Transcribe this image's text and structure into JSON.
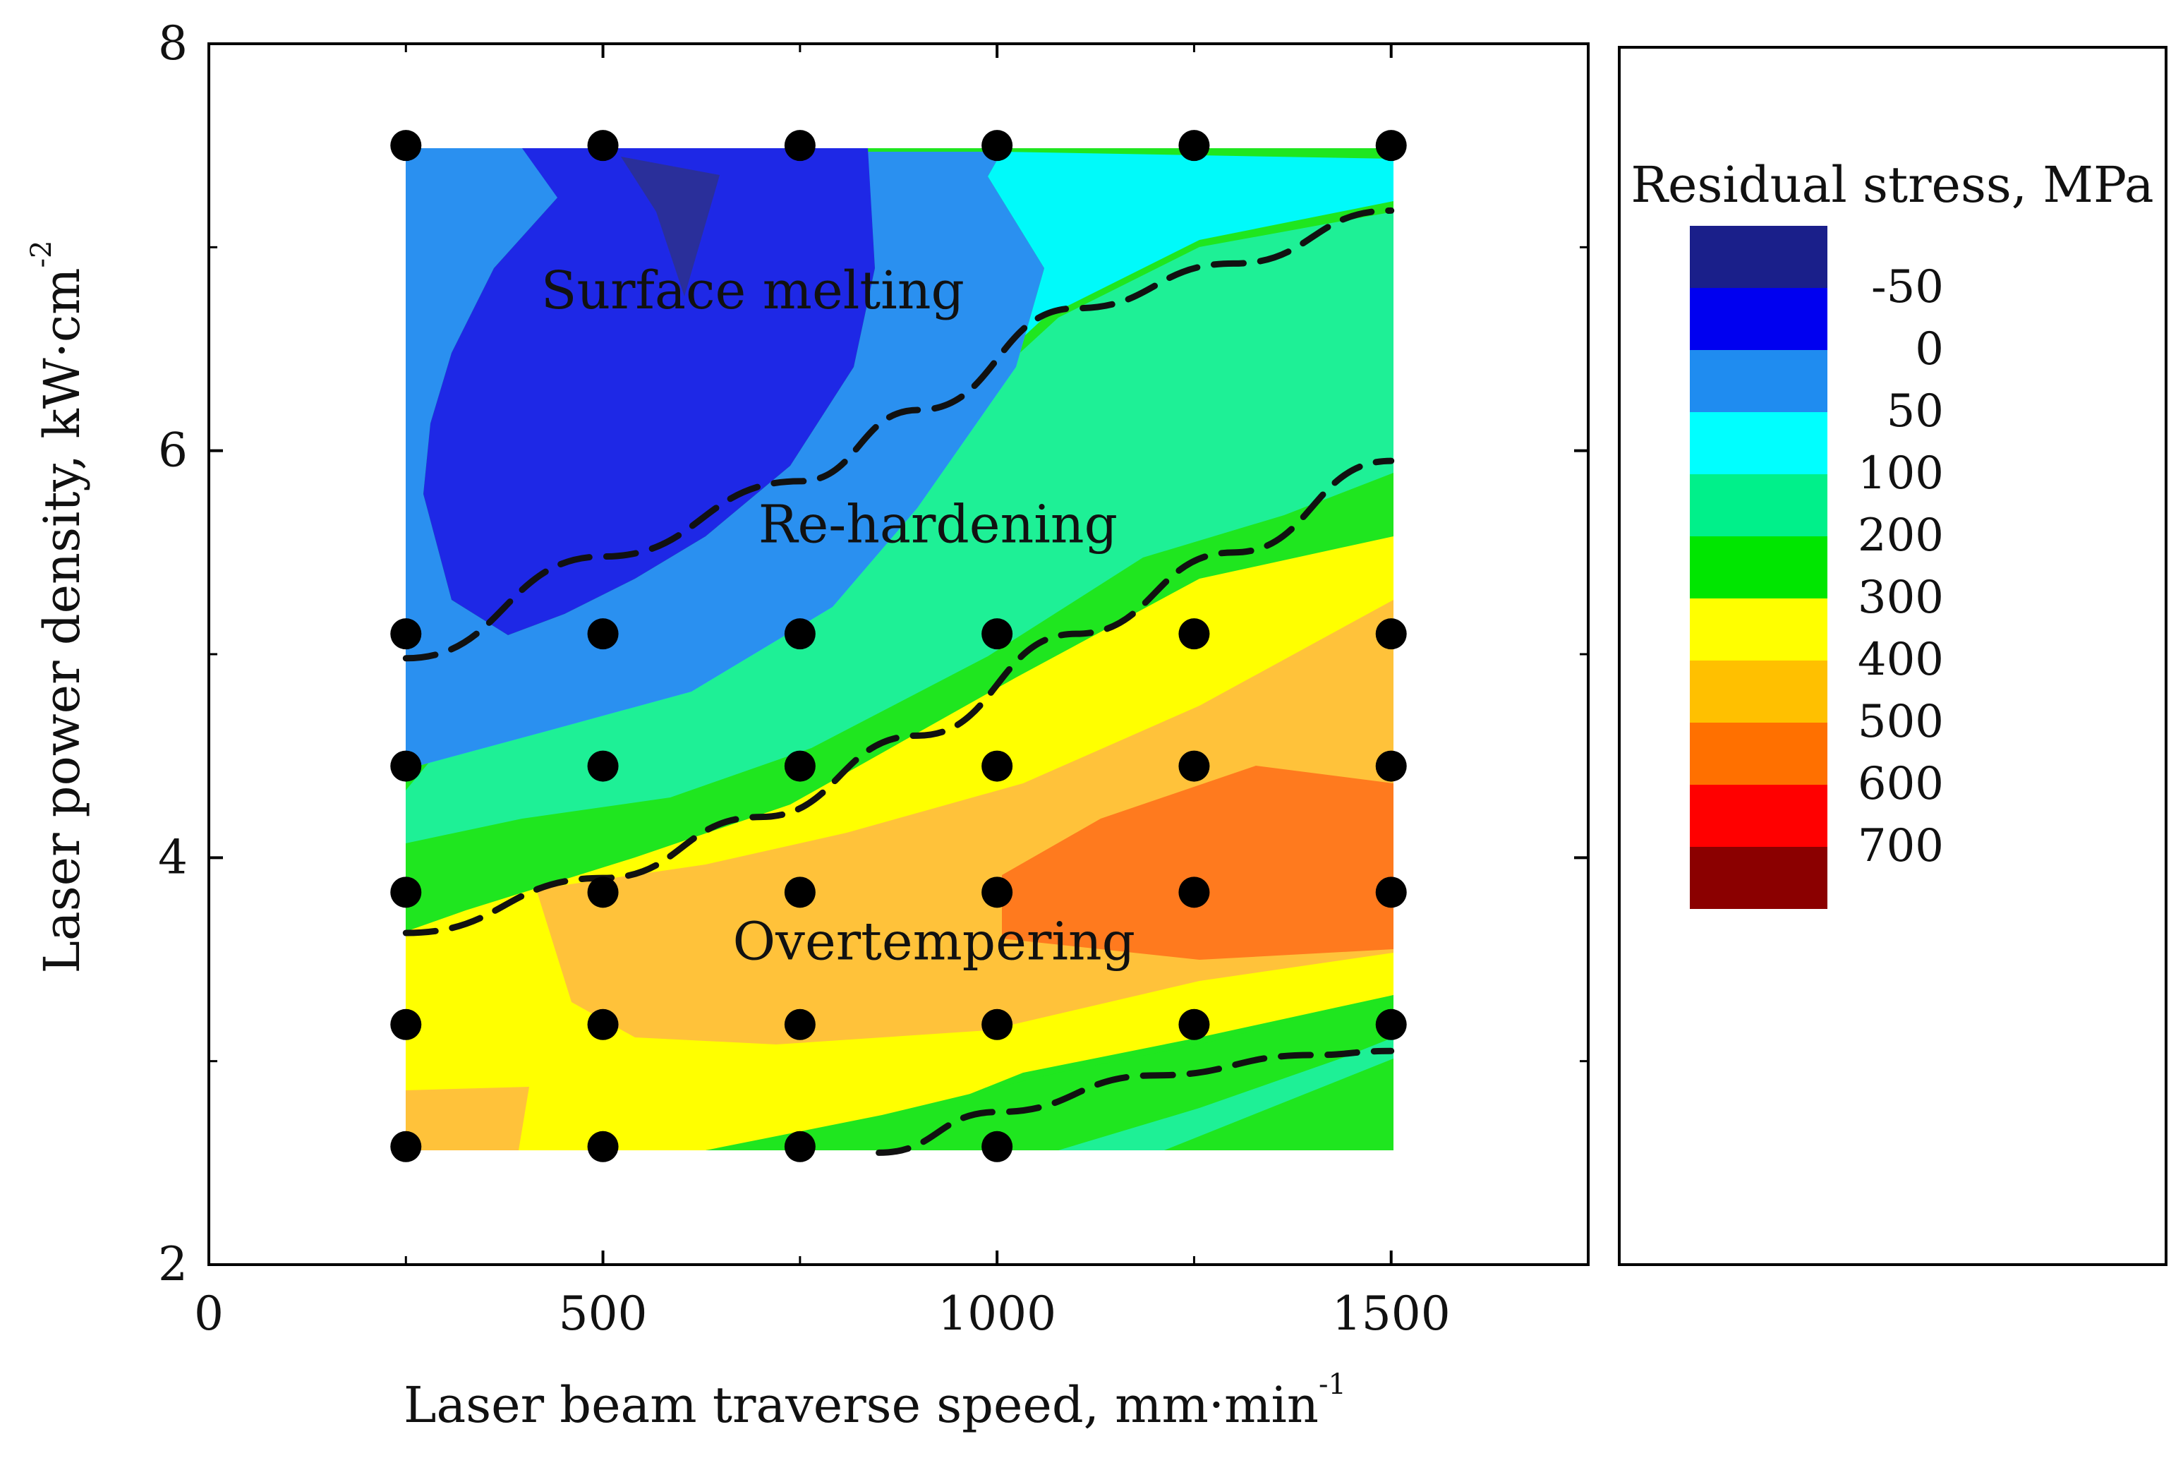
{
  "chart_data": {
    "type": "contour",
    "xlabel": "Laser beam traverse speed, mm·min",
    "xlabel_sup": "-1",
    "ylabel": "Laser power density, kW·cm",
    "ylabel_sup": "-2",
    "xlim": [
      0,
      1750
    ],
    "ylim": [
      2,
      8
    ],
    "xticks": [
      "0",
      "500",
      "1000",
      "1500"
    ],
    "xtick_values": [
      0,
      500,
      1000,
      1500
    ],
    "yticks": [
      "2",
      "4",
      "6",
      "8"
    ],
    "ytick_values": [
      2,
      4,
      6,
      8
    ],
    "measured_points": [
      [
        250,
        7.5
      ],
      [
        500,
        7.5
      ],
      [
        750,
        7.5
      ],
      [
        1000,
        7.5
      ],
      [
        1250,
        7.5
      ],
      [
        1500,
        7.5
      ],
      [
        250,
        5.1
      ],
      [
        500,
        5.1
      ],
      [
        750,
        5.1
      ],
      [
        1000,
        5.1
      ],
      [
        1250,
        5.1
      ],
      [
        1500,
        5.1
      ],
      [
        250,
        4.45
      ],
      [
        500,
        4.45
      ],
      [
        750,
        4.45
      ],
      [
        1000,
        4.45
      ],
      [
        1250,
        4.45
      ],
      [
        1500,
        4.45
      ],
      [
        250,
        3.83
      ],
      [
        500,
        3.83
      ],
      [
        750,
        3.83
      ],
      [
        1000,
        3.83
      ],
      [
        1250,
        3.83
      ],
      [
        1500,
        3.83
      ],
      [
        250,
        3.18
      ],
      [
        500,
        3.18
      ],
      [
        750,
        3.18
      ],
      [
        1000,
        3.18
      ],
      [
        1250,
        3.18
      ],
      [
        1500,
        3.18
      ],
      [
        250,
        2.58
      ],
      [
        500,
        2.58
      ],
      [
        750,
        2.58
      ],
      [
        1000,
        2.58
      ]
    ],
    "regions": [
      {
        "name": "Surface melting",
        "x": 690,
        "y": 6.7
      },
      {
        "name": "Re-hardening",
        "x": 925,
        "y": 5.55
      },
      {
        "name": "Overtempering",
        "x": 920,
        "y": 3.5
      }
    ],
    "boundaries": [
      [
        [
          250,
          4.98
        ],
        [
          500,
          5.48
        ],
        [
          750,
          5.85
        ],
        [
          900,
          6.2
        ],
        [
          1100,
          6.7
        ],
        [
          1300,
          6.92
        ],
        [
          1500,
          7.18
        ]
      ],
      [
        [
          250,
          3.63
        ],
        [
          500,
          3.9
        ],
        [
          700,
          4.2
        ],
        [
          900,
          4.6
        ],
        [
          1100,
          5.1
        ],
        [
          1300,
          5.5
        ],
        [
          1500,
          5.95
        ]
      ],
      [
        [
          850,
          2.55
        ],
        [
          1000,
          2.75
        ],
        [
          1200,
          2.93
        ],
        [
          1400,
          3.03
        ],
        [
          1500,
          3.05
        ]
      ]
    ],
    "legend": {
      "title": "Residual stress, MPa",
      "levels": [
        "-50",
        "0",
        "50",
        "100",
        "200",
        "300",
        "400",
        "500",
        "600",
        "700"
      ],
      "colors": [
        "#1a1f8a",
        "#0000f0",
        "#1f8cf0",
        "#00ffff",
        "#00f08a",
        "#00e600",
        "#ffff00",
        "#ffc000",
        "#ff7000",
        "#ff0000",
        "#8b0000"
      ]
    },
    "field_colors": {
      "c_m50": "#2a2f9a",
      "c_0": "#1e28e6",
      "c_50": "#2a90f0",
      "c_100": "#00fafa",
      "c_200": "#1ef096",
      "c_300": "#1fe61f",
      "c_400": "#ffff00",
      "c_500": "#ffc23a",
      "c_600": "#ff7a1e"
    }
  }
}
